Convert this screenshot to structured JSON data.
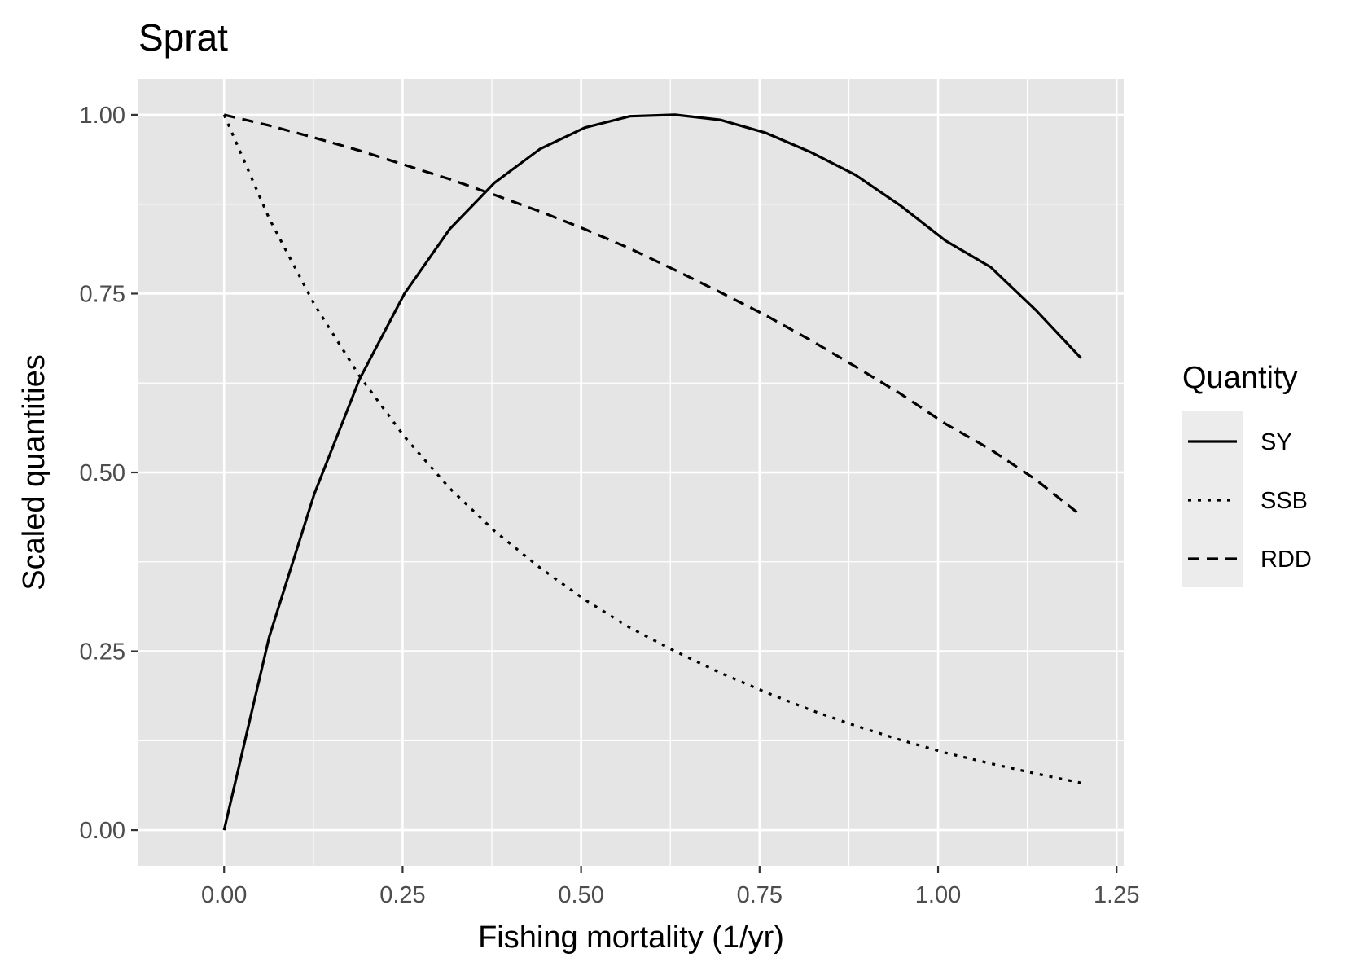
{
  "chart_data": {
    "type": "line",
    "title": "Sprat",
    "xlabel": "Fishing mortality (1/yr)",
    "ylabel": "Scaled quantities",
    "xlim": [
      -0.12,
      1.26
    ],
    "ylim": [
      -0.05,
      1.05
    ],
    "x_ticks": [
      0.0,
      0.25,
      0.5,
      0.75,
      1.0,
      1.25
    ],
    "x_tick_labels": [
      "0.00",
      "0.25",
      "0.50",
      "0.75",
      "1.00",
      "1.25"
    ],
    "y_ticks": [
      0.0,
      0.25,
      0.5,
      0.75,
      1.0
    ],
    "y_tick_labels": [
      "0.00",
      "0.25",
      "0.50",
      "0.75",
      "1.00"
    ],
    "grid": true,
    "legend": {
      "title": "Quantity",
      "position": "right"
    },
    "x": [
      0.0,
      0.0632,
      0.1263,
      0.1895,
      0.2526,
      0.3158,
      0.3789,
      0.4421,
      0.5053,
      0.5684,
      0.6316,
      0.6947,
      0.7579,
      0.8211,
      0.8842,
      0.9474,
      1.0105,
      1.0737,
      1.1368,
      1.2
    ],
    "series": [
      {
        "name": "SY",
        "linetype": "solid",
        "color": "#000000",
        "values": [
          0.0,
          0.27,
          0.47,
          0.63,
          0.75,
          0.84,
          0.905,
          0.952,
          0.982,
          0.998,
          1.0,
          0.993,
          0.975,
          0.948,
          0.916,
          0.873,
          0.824,
          0.787,
          0.727,
          0.66
        ]
      },
      {
        "name": "SSB",
        "linetype": "dotted",
        "color": "#000000",
        "values": [
          1.0,
          0.855,
          0.735,
          0.635,
          0.55,
          0.478,
          0.418,
          0.367,
          0.322,
          0.283,
          0.25,
          0.22,
          0.193,
          0.168,
          0.146,
          0.126,
          0.108,
          0.093,
          0.079,
          0.066
        ]
      },
      {
        "name": "RDD",
        "linetype": "dashed",
        "color": "#000000",
        "values": [
          1.0,
          0.985,
          0.968,
          0.95,
          0.93,
          0.91,
          0.888,
          0.865,
          0.84,
          0.813,
          0.783,
          0.752,
          0.72,
          0.685,
          0.648,
          0.61,
          0.568,
          0.532,
          0.49,
          0.44
        ]
      }
    ],
    "colors": {
      "panel": "#e5e5e5",
      "grid": "#ffffff",
      "legend_key": "#ececec"
    }
  }
}
